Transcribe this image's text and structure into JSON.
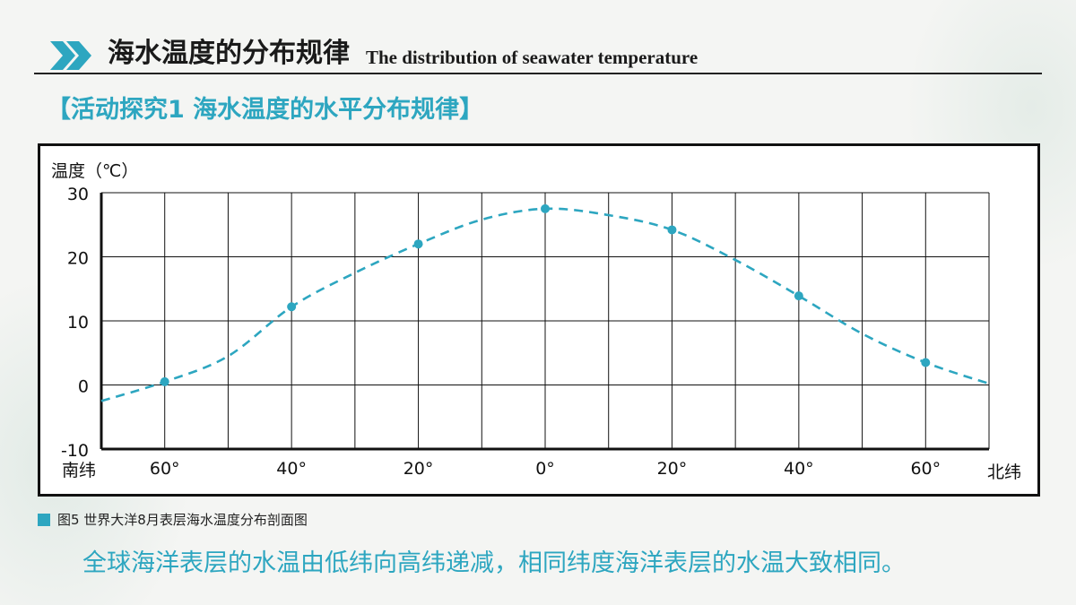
{
  "header": {
    "title_cn": "海水温度的分布规律",
    "title_en": "The distribution of seawater temperature",
    "icon": "double-chevron-right-icon"
  },
  "section_title": "【活动探究1 海水温度的水平分布规律】",
  "caption": {
    "text": "图5 世界大洋8月表层海水温度分布剖面图"
  },
  "conclusion": "全球海洋表层的水温由低纬向高纬递减，相同纬度海洋表层的水温大致相同。",
  "colors": {
    "accent": "#2da6c0",
    "grid": "#111111"
  },
  "chart_data": {
    "type": "line",
    "ylabel": "温度（℃）",
    "ylim": [
      -10,
      30
    ],
    "yticks": [
      "30",
      "20",
      "10",
      "0",
      "-10"
    ],
    "x_left_label": "南纬",
    "x_right_label": "北纬",
    "xlim": [
      -70,
      70
    ],
    "xticks": [
      {
        "value": -60,
        "label": "60°"
      },
      {
        "value": -40,
        "label": "40°"
      },
      {
        "value": -20,
        "label": "20°"
      },
      {
        "value": 0,
        "label": "0°"
      },
      {
        "value": 20,
        "label": "20°"
      },
      {
        "value": 40,
        "label": "40°"
      },
      {
        "value": 60,
        "label": "60°"
      }
    ],
    "grid": true,
    "series": [
      {
        "line_style": "dashed",
        "points": [
          {
            "x": -60,
            "y": 0.5
          },
          {
            "x": -40,
            "y": 12.2
          },
          {
            "x": -20,
            "y": 22
          },
          {
            "x": 0,
            "y": 27.5
          },
          {
            "x": 20,
            "y": 24.2
          },
          {
            "x": 40,
            "y": 13.9
          },
          {
            "x": 60,
            "y": 3.5
          }
        ],
        "curve": [
          {
            "x": -70,
            "y": -2.5
          },
          {
            "x": -60,
            "y": 0.5
          },
          {
            "x": -50,
            "y": 4.5
          },
          {
            "x": -40,
            "y": 12.2
          },
          {
            "x": -30,
            "y": 17.5
          },
          {
            "x": -20,
            "y": 22
          },
          {
            "x": -10,
            "y": 25.8
          },
          {
            "x": 0,
            "y": 27.5
          },
          {
            "x": 10,
            "y": 26.5
          },
          {
            "x": 20,
            "y": 24.2
          },
          {
            "x": 30,
            "y": 19.5
          },
          {
            "x": 40,
            "y": 13.9
          },
          {
            "x": 50,
            "y": 8
          },
          {
            "x": 60,
            "y": 3.5
          },
          {
            "x": 70,
            "y": 0.2
          }
        ]
      }
    ]
  }
}
